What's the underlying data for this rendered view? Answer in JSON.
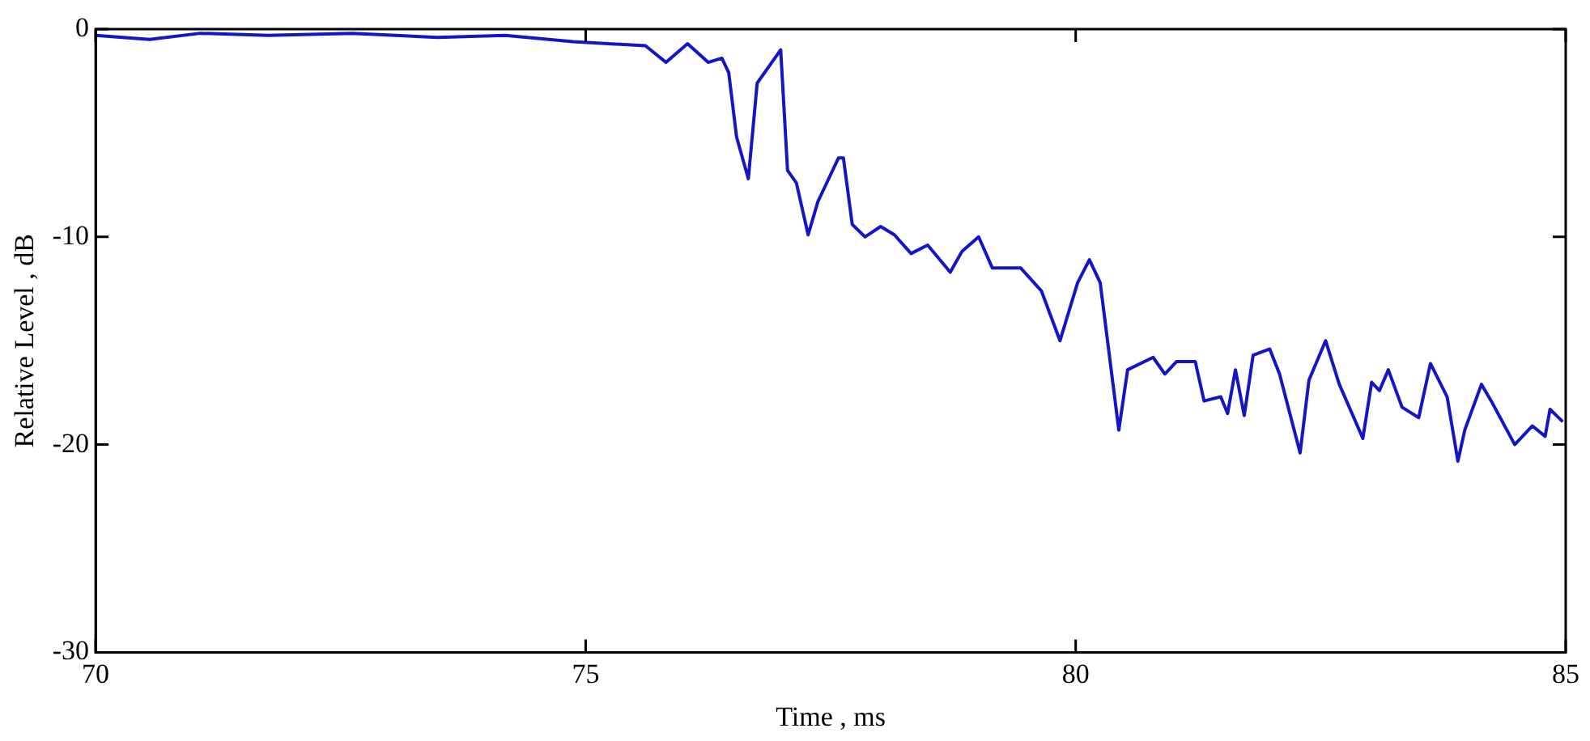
{
  "chart_data": {
    "type": "line",
    "xlabel": "Time , ms",
    "ylabel": "Relative Level , dB",
    "xlim": [
      70,
      85
    ],
    "xticks": [
      70,
      75,
      80,
      85
    ],
    "ylim": [
      -30,
      0
    ],
    "yticks": [
      -30,
      -20,
      -10,
      0
    ],
    "grid": false,
    "legend": false,
    "marker": "none",
    "line_style": "solid",
    "series": [
      {
        "color": "#1515c8",
        "x": [
          70.0,
          70.55,
          71.07,
          71.76,
          72.62,
          73.49,
          74.18,
          74.87,
          75.61,
          75.82,
          76.04,
          76.25,
          76.39,
          76.46,
          76.54,
          76.66,
          76.75,
          76.99,
          77.06,
          77.15,
          77.27,
          77.37,
          77.58,
          77.63,
          77.72,
          77.85,
          78.01,
          78.15,
          78.32,
          78.49,
          78.72,
          78.84,
          79.01,
          79.15,
          79.44,
          79.65,
          79.84,
          80.02,
          80.14,
          80.25,
          80.44,
          80.53,
          80.79,
          80.91,
          81.03,
          81.22,
          81.31,
          81.48,
          81.55,
          81.63,
          81.72,
          81.81,
          81.98,
          82.08,
          82.29,
          82.38,
          82.55,
          82.69,
          82.93,
          83.02,
          83.1,
          83.19,
          83.33,
          83.5,
          83.62,
          83.79,
          83.9,
          83.97,
          84.14,
          84.24,
          84.48,
          84.66,
          84.79,
          84.84,
          84.97
        ],
        "values": [
          -0.3,
          -0.5,
          -0.2,
          -0.3,
          -0.2,
          -0.4,
          -0.3,
          -0.6,
          -0.8,
          -1.6,
          -0.7,
          -1.6,
          -1.4,
          -2.1,
          -5.2,
          -7.2,
          -2.6,
          -1.0,
          -6.8,
          -7.4,
          -9.9,
          -8.3,
          -6.2,
          -6.2,
          -9.4,
          -10.0,
          -9.5,
          -9.9,
          -10.8,
          -10.4,
          -11.7,
          -10.7,
          -10.0,
          -11.5,
          -11.5,
          -12.6,
          -15.0,
          -12.2,
          -11.1,
          -12.2,
          -19.3,
          -16.4,
          -15.8,
          -16.6,
          -16.0,
          -16.0,
          -17.9,
          -17.7,
          -18.5,
          -16.4,
          -18.6,
          -15.7,
          -15.4,
          -16.6,
          -20.4,
          -16.9,
          -15.0,
          -17.1,
          -19.7,
          -17.0,
          -17.4,
          -16.4,
          -18.2,
          -18.7,
          -16.1,
          -17.7,
          -20.8,
          -19.3,
          -17.1,
          -17.9,
          -20.0,
          -19.1,
          -19.6,
          -18.3,
          -18.9
        ]
      }
    ]
  }
}
